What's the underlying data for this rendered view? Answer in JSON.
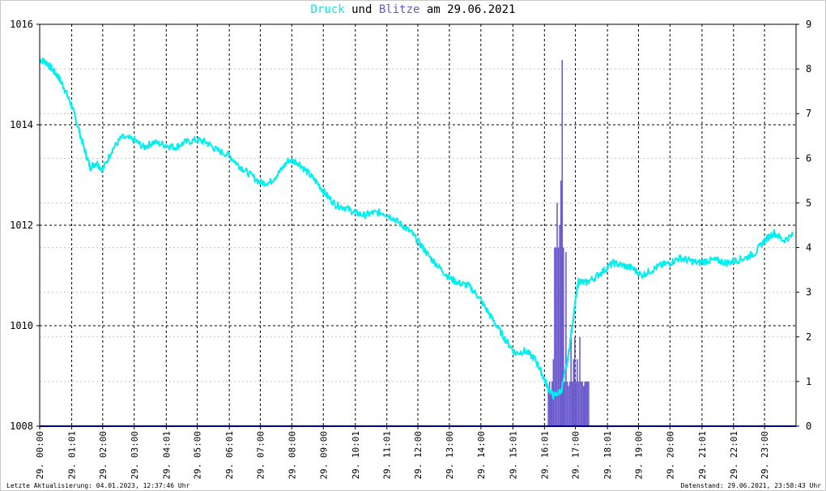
{
  "title": {
    "druck": "Druck",
    "und": "und",
    "blitze": "Blitze",
    "am": "am",
    "date": "29.06.2021"
  },
  "footer": {
    "left": "Letzte Aktualisierung: 04.01.2023, 12:37:46 Uhr",
    "right": "Datenstand: 29.06.2021, 23:58:43 Uhr"
  },
  "colors": {
    "pressure": "#00f0f0",
    "lightning": "#6a5acd",
    "baseline": "#00008b",
    "grid": "#000000"
  },
  "chart_data": {
    "type": "line",
    "title": "Druck und Blitze am 29.06.2021",
    "grid": true,
    "x_range_hours": [
      0,
      24
    ],
    "x_ticks": [
      {
        "h": 0.0,
        "label": "29. 00:00"
      },
      {
        "h": 1.0167,
        "label": "29. 01:01"
      },
      {
        "h": 2.0,
        "label": "29. 02:00"
      },
      {
        "h": 3.0,
        "label": "29. 03:00"
      },
      {
        "h": 4.0167,
        "label": "29. 04:01"
      },
      {
        "h": 5.0,
        "label": "29. 05:00"
      },
      {
        "h": 6.0167,
        "label": "29. 06:01"
      },
      {
        "h": 7.0,
        "label": "29. 07:00"
      },
      {
        "h": 8.0,
        "label": "29. 08:00"
      },
      {
        "h": 9.0,
        "label": "29. 09:00"
      },
      {
        "h": 10.0167,
        "label": "29. 10:01"
      },
      {
        "h": 11.0167,
        "label": "29. 11:01"
      },
      {
        "h": 12.0,
        "label": "29. 12:00"
      },
      {
        "h": 13.0,
        "label": "29. 13:00"
      },
      {
        "h": 14.0,
        "label": "29. 14:00"
      },
      {
        "h": 15.0167,
        "label": "29. 15:01"
      },
      {
        "h": 16.0167,
        "label": "29. 16:01"
      },
      {
        "h": 17.0,
        "label": "29. 17:00"
      },
      {
        "h": 18.0167,
        "label": "29. 18:01"
      },
      {
        "h": 19.0,
        "label": "29. 19:00"
      },
      {
        "h": 20.0,
        "label": "29. 20:00"
      },
      {
        "h": 21.0167,
        "label": "29. 21:01"
      },
      {
        "h": 22.0167,
        "label": "29. 22:01"
      },
      {
        "h": 23.0,
        "label": "29. 23:00"
      }
    ],
    "y_left": {
      "ylim": [
        1008,
        1016
      ],
      "ticks": [
        1008,
        1010,
        1012,
        1014,
        1016
      ]
    },
    "y_right": {
      "ylim": [
        0,
        9
      ],
      "ticks": [
        0,
        1,
        2,
        3,
        4,
        5,
        6,
        7,
        8,
        9
      ]
    },
    "series": [
      {
        "name": "Druck",
        "axis": "left",
        "points": [
          [
            0.0,
            1015.3
          ],
          [
            0.2,
            1015.25
          ],
          [
            0.4,
            1015.1
          ],
          [
            0.6,
            1014.95
          ],
          [
            0.8,
            1014.7
          ],
          [
            1.0,
            1014.4
          ],
          [
            1.2,
            1014.0
          ],
          [
            1.4,
            1013.55
          ],
          [
            1.6,
            1013.15
          ],
          [
            1.8,
            1013.25
          ],
          [
            2.0,
            1013.1
          ],
          [
            2.3,
            1013.5
          ],
          [
            2.6,
            1013.75
          ],
          [
            3.0,
            1013.7
          ],
          [
            3.3,
            1013.55
          ],
          [
            3.6,
            1013.65
          ],
          [
            4.0,
            1013.6
          ],
          [
            4.3,
            1013.55
          ],
          [
            4.6,
            1013.65
          ],
          [
            5.0,
            1013.7
          ],
          [
            5.3,
            1013.65
          ],
          [
            5.6,
            1013.5
          ],
          [
            6.0,
            1013.4
          ],
          [
            6.3,
            1013.2
          ],
          [
            6.6,
            1013.05
          ],
          [
            7.0,
            1012.85
          ],
          [
            7.3,
            1012.85
          ],
          [
            7.6,
            1013.05
          ],
          [
            7.9,
            1013.3
          ],
          [
            8.2,
            1013.25
          ],
          [
            8.5,
            1013.05
          ],
          [
            8.8,
            1012.85
          ],
          [
            9.1,
            1012.6
          ],
          [
            9.4,
            1012.4
          ],
          [
            9.7,
            1012.35
          ],
          [
            10.0,
            1012.25
          ],
          [
            10.3,
            1012.2
          ],
          [
            10.6,
            1012.25
          ],
          [
            10.9,
            1012.25
          ],
          [
            11.2,
            1012.15
          ],
          [
            11.5,
            1012.0
          ],
          [
            11.8,
            1011.85
          ],
          [
            12.1,
            1011.6
          ],
          [
            12.4,
            1011.35
          ],
          [
            12.7,
            1011.15
          ],
          [
            13.0,
            1010.95
          ],
          [
            13.3,
            1010.85
          ],
          [
            13.6,
            1010.8
          ],
          [
            13.9,
            1010.6
          ],
          [
            14.2,
            1010.3
          ],
          [
            14.5,
            1010.0
          ],
          [
            14.8,
            1009.7
          ],
          [
            15.1,
            1009.45
          ],
          [
            15.4,
            1009.5
          ],
          [
            15.7,
            1009.35
          ],
          [
            15.9,
            1009.1
          ],
          [
            16.1,
            1008.8
          ],
          [
            16.3,
            1008.6
          ],
          [
            16.55,
            1008.7
          ],
          [
            16.75,
            1009.3
          ],
          [
            16.9,
            1010.0
          ],
          [
            17.0,
            1010.5
          ],
          [
            17.1,
            1010.9
          ],
          [
            17.3,
            1010.85
          ],
          [
            17.6,
            1010.95
          ],
          [
            17.9,
            1011.1
          ],
          [
            18.2,
            1011.25
          ],
          [
            18.5,
            1011.2
          ],
          [
            18.8,
            1011.15
          ],
          [
            19.1,
            1011.0
          ],
          [
            19.4,
            1011.1
          ],
          [
            19.7,
            1011.2
          ],
          [
            20.0,
            1011.25
          ],
          [
            20.3,
            1011.35
          ],
          [
            20.6,
            1011.3
          ],
          [
            20.9,
            1011.25
          ],
          [
            21.2,
            1011.3
          ],
          [
            21.5,
            1011.3
          ],
          [
            21.8,
            1011.25
          ],
          [
            22.1,
            1011.3
          ],
          [
            22.4,
            1011.35
          ],
          [
            22.7,
            1011.45
          ],
          [
            23.0,
            1011.7
          ],
          [
            23.3,
            1011.85
          ],
          [
            23.6,
            1011.7
          ],
          [
            23.9,
            1011.8
          ]
        ]
      },
      {
        "name": "Blitze",
        "axis": "right",
        "style": "bars",
        "bin_hours": 0.04,
        "bins": [
          [
            16.12,
            0.8
          ],
          [
            16.16,
            1.0
          ],
          [
            16.2,
            0.8
          ],
          [
            16.24,
            1.0
          ],
          [
            16.28,
            1.5
          ],
          [
            16.32,
            4.0
          ],
          [
            16.36,
            4.0
          ],
          [
            16.4,
            5.0
          ],
          [
            16.44,
            4.0
          ],
          [
            16.48,
            4.5
          ],
          [
            16.52,
            5.5
          ],
          [
            16.56,
            8.2
          ],
          [
            16.6,
            4.0
          ],
          [
            16.64,
            1.0
          ],
          [
            16.68,
            3.9
          ],
          [
            16.72,
            1.0
          ],
          [
            16.76,
            0.9
          ],
          [
            16.8,
            1.0
          ],
          [
            16.84,
            2.0
          ],
          [
            16.88,
            1.0
          ],
          [
            16.92,
            1.5
          ],
          [
            16.96,
            2.0
          ],
          [
            17.0,
            1.0
          ],
          [
            17.04,
            1.5
          ],
          [
            17.08,
            1.0
          ],
          [
            17.12,
            2.0
          ],
          [
            17.16,
            1.0
          ],
          [
            17.2,
            1.0
          ],
          [
            17.24,
            0.9
          ],
          [
            17.28,
            1.0
          ],
          [
            17.32,
            1.0
          ],
          [
            17.36,
            1.0
          ],
          [
            17.4,
            1.0
          ]
        ]
      }
    ]
  }
}
